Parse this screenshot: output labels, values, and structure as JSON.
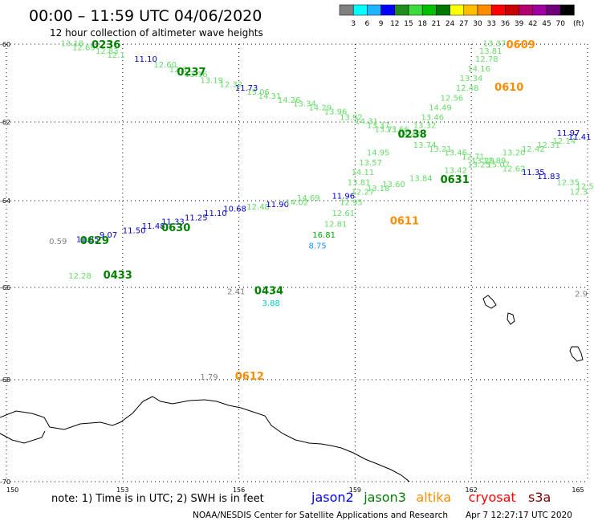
{
  "header": {
    "title": "00:00 – 11:59 UTC 04/06/2020",
    "subtitle": "12 hour collection of altimeter wave heights"
  },
  "colorbar": {
    "colors": [
      "#808080",
      "#00ffff",
      "#1eb4ff",
      "#0000ff",
      "#1e8c1e",
      "#3cdc3c",
      "#00c000",
      "#007800",
      "#ffff00",
      "#ffbe00",
      "#ff8c00",
      "#ff0000",
      "#c80000",
      "#b4006e",
      "#a000a0",
      "#6e0078",
      "#000000"
    ],
    "labels": [
      "3",
      "6",
      "9",
      "12",
      "15",
      "18",
      "21",
      "24",
      "27",
      "30",
      "33",
      "36",
      "39",
      "42",
      "45",
      "70"
    ],
    "unit": "(ft)"
  },
  "axes": {
    "lat_labels": [
      {
        "value": -60,
        "text": "-60"
      },
      {
        "value": -62,
        "text": "-62"
      },
      {
        "value": -64,
        "text": "-64"
      },
      {
        "value": -66,
        "text": "-66"
      },
      {
        "value": -68,
        "text": "-68"
      },
      {
        "value": -70,
        "text": "-70"
      }
    ],
    "lon_labels": [
      {
        "value": 150,
        "text": "150"
      },
      {
        "value": 153,
        "text": "153"
      },
      {
        "value": 156,
        "text": "156"
      },
      {
        "value": 159,
        "text": "159"
      },
      {
        "value": 162,
        "text": "162"
      },
      {
        "value": 165,
        "text": "165"
      }
    ]
  },
  "footer": {
    "note": "note: 1) Time is in UTC; 2) SWH is in feet",
    "legend": [
      {
        "name": "jason2",
        "color": "#0000ff"
      },
      {
        "name": "jason3",
        "color": "#008000"
      },
      {
        "name": "altika",
        "color": "#ff8c00"
      },
      {
        "name": "cryosat",
        "color": "#ff0000"
      },
      {
        "name": "s3a",
        "color": "#800000"
      }
    ],
    "credit": "NOAA/NESDIS Center for Satellite Applications and Research",
    "timestamp": "Apr  7 12:27:17 UTC 2020"
  },
  "chart_data": {
    "type": "scatter",
    "lon_range": [
      150,
      165
    ],
    "lat_range": [
      -70,
      -60
    ],
    "time_labels": [
      {
        "text": "0236",
        "lon": 152.2,
        "lat": -60.1,
        "color": "#008000"
      },
      {
        "text": "0237",
        "lon": 154.4,
        "lat": -60.8,
        "color": "#008000"
      },
      {
        "text": "0238",
        "lon": 160.1,
        "lat": -62.4,
        "color": "#008000"
      },
      {
        "text": "0609",
        "lon": 162.9,
        "lat": -60.1,
        "color": "#ff8c00"
      },
      {
        "text": "0610",
        "lon": 162.6,
        "lat": -61.2,
        "color": "#ff8c00"
      },
      {
        "text": "0611",
        "lon": 159.9,
        "lat": -64.55,
        "color": "#ff8c00"
      },
      {
        "text": "0612",
        "lon": 155.9,
        "lat": -68.0,
        "color": "#ff8c00"
      },
      {
        "text": "0629",
        "lon": 151.9,
        "lat": -65.0,
        "color": "#008000"
      },
      {
        "text": "0630",
        "lon": 154.0,
        "lat": -64.7,
        "color": "#008000"
      },
      {
        "text": "0631",
        "lon": 161.2,
        "lat": -63.55,
        "color": "#008000"
      },
      {
        "text": "0433",
        "lon": 152.5,
        "lat": -65.8,
        "color": "#008000"
      },
      {
        "text": "0434",
        "lon": 156.4,
        "lat": -66.15,
        "color": "#008000"
      }
    ],
    "points": [
      {
        "text": "13.18",
        "lon": 151.4,
        "lat": -60.05,
        "color": "#66dd66"
      },
      {
        "text": "12.69",
        "lon": 151.7,
        "lat": -60.15,
        "color": "#66dd66"
      },
      {
        "text": "12.83",
        "lon": 152.3,
        "lat": -60.25,
        "color": "#66dd66"
      },
      {
        "text": "12.1",
        "lon": 152.6,
        "lat": -60.35,
        "color": "#66dd66"
      },
      {
        "text": "11.10",
        "lon": 153.3,
        "lat": -60.45,
        "color": "#0000cc"
      },
      {
        "text": "12.60",
        "lon": 153.8,
        "lat": -60.6,
        "color": "#66dd66"
      },
      {
        "text": "12.61",
        "lon": 154.2,
        "lat": -60.72,
        "color": "#66dd66"
      },
      {
        "text": "13.16",
        "lon": 154.6,
        "lat": -60.85,
        "color": "#66dd66"
      },
      {
        "text": "13.19",
        "lon": 155.0,
        "lat": -61.0,
        "color": "#66dd66"
      },
      {
        "text": "12.32",
        "lon": 155.5,
        "lat": -61.1,
        "color": "#66dd66"
      },
      {
        "text": "11.73",
        "lon": 155.9,
        "lat": -61.2,
        "color": "#0000cc"
      },
      {
        "text": "15.06",
        "lon": 156.2,
        "lat": -61.3,
        "color": "#66dd66"
      },
      {
        "text": "14.31",
        "lon": 156.5,
        "lat": -61.4,
        "color": "#66dd66"
      },
      {
        "text": "14.26",
        "lon": 157.0,
        "lat": -61.5,
        "color": "#66dd66"
      },
      {
        "text": "13.34",
        "lon": 157.4,
        "lat": -61.6,
        "color": "#66dd66"
      },
      {
        "text": "14.29",
        "lon": 157.8,
        "lat": -61.7,
        "color": "#66dd66"
      },
      {
        "text": "13.96",
        "lon": 158.2,
        "lat": -61.8,
        "color": "#66dd66"
      },
      {
        "text": "13.92",
        "lon": 158.6,
        "lat": -61.95,
        "color": "#66dd66"
      },
      {
        "text": "14.31",
        "lon": 159.0,
        "lat": -62.05,
        "color": "#66dd66"
      },
      {
        "text": "13.37",
        "lon": 159.3,
        "lat": -62.15,
        "color": "#66dd66"
      },
      {
        "text": "13.66",
        "lon": 159.8,
        "lat": -62.25,
        "color": "#66dd66"
      },
      {
        "text": "13.71",
        "lon": 159.5,
        "lat": -62.25,
        "color": "#66dd66"
      },
      {
        "text": "13.47",
        "lon": 160.1,
        "lat": -62.4,
        "color": "#66dd66"
      },
      {
        "text": "13.74",
        "lon": 160.5,
        "lat": -62.65,
        "color": "#66dd66"
      },
      {
        "text": "13.21",
        "lon": 160.9,
        "lat": -62.75,
        "color": "#66dd66"
      },
      {
        "text": "13.46",
        "lon": 161.3,
        "lat": -62.85,
        "color": "#66dd66"
      },
      {
        "text": "12.71",
        "lon": 161.75,
        "lat": -62.95,
        "color": "#66dd66"
      },
      {
        "text": "13.29",
        "lon": 162.0,
        "lat": -63.05,
        "color": "#66dd66"
      },
      {
        "text": "15.07",
        "lon": 162.4,
        "lat": -63.15,
        "color": "#66dd66"
      },
      {
        "text": "12.62",
        "lon": 162.8,
        "lat": -63.25,
        "color": "#66dd66"
      },
      {
        "text": "11.35",
        "lon": 163.3,
        "lat": -63.35,
        "color": "#0000cc"
      },
      {
        "text": "11.83",
        "lon": 163.7,
        "lat": -63.45,
        "color": "#0000cc"
      },
      {
        "text": "12.35",
        "lon": 164.2,
        "lat": -63.6,
        "color": "#66dd66"
      },
      {
        "text": "12.56",
        "lon": 164.7,
        "lat": -63.7,
        "color": "#66dd66"
      },
      {
        "text": "12.3",
        "lon": 165.0,
        "lat": -63.85,
        "color": "#66dd66"
      },
      {
        "text": "13.37",
        "lon": 162.3,
        "lat": -60.05,
        "color": "#66dd66"
      },
      {
        "text": "13.81",
        "lon": 162.2,
        "lat": -60.25,
        "color": "#66dd66"
      },
      {
        "text": "12.78",
        "lon": 162.1,
        "lat": -60.45,
        "color": "#66dd66"
      },
      {
        "text": "14.16",
        "lon": 161.9,
        "lat": -60.7,
        "color": "#66dd66"
      },
      {
        "text": "13.34",
        "lon": 161.7,
        "lat": -60.95,
        "color": "#66dd66"
      },
      {
        "text": "12.48",
        "lon": 161.6,
        "lat": -61.2,
        "color": "#66dd66"
      },
      {
        "text": "12.56",
        "lon": 161.2,
        "lat": -61.45,
        "color": "#66dd66"
      },
      {
        "text": "14.49",
        "lon": 160.9,
        "lat": -61.7,
        "color": "#66dd66"
      },
      {
        "text": "13.46",
        "lon": 160.7,
        "lat": -61.95,
        "color": "#66dd66"
      },
      {
        "text": "13.32",
        "lon": 160.5,
        "lat": -62.15,
        "color": "#66dd66"
      },
      {
        "text": "14.95",
        "lon": 159.3,
        "lat": -62.85,
        "color": "#66dd66"
      },
      {
        "text": "13.57",
        "lon": 159.1,
        "lat": -63.1,
        "color": "#66dd66"
      },
      {
        "text": "14.11",
        "lon": 158.9,
        "lat": -63.35,
        "color": "#66dd66"
      },
      {
        "text": "13.81",
        "lon": 158.8,
        "lat": -63.6,
        "color": "#66dd66"
      },
      {
        "text": "12.95",
        "lon": 158.6,
        "lat": -64.1,
        "color": "#66dd66"
      },
      {
        "text": "12.61",
        "lon": 158.4,
        "lat": -64.35,
        "color": "#66dd66"
      },
      {
        "text": "12.81",
        "lon": 158.2,
        "lat": -64.6,
        "color": "#66dd66"
      },
      {
        "text": "16.81",
        "lon": 157.9,
        "lat": -64.85,
        "color": "#00aa00"
      },
      {
        "text": "8.75",
        "lon": 157.8,
        "lat": -65.1,
        "color": "#1e90ff"
      },
      {
        "text": "11.85",
        "lon": 151.8,
        "lat": -64.95,
        "color": "#0000cc"
      },
      {
        "text": "9.07",
        "lon": 152.4,
        "lat": -64.85,
        "color": "#0000cc"
      },
      {
        "text": "11.50",
        "lon": 153.0,
        "lat": -64.75,
        "color": "#0000cc"
      },
      {
        "text": "11.48",
        "lon": 153.5,
        "lat": -64.65,
        "color": "#0000cc"
      },
      {
        "text": "11.33",
        "lon": 154.0,
        "lat": -64.55,
        "color": "#0000cc"
      },
      {
        "text": "11.25",
        "lon": 154.6,
        "lat": -64.45,
        "color": "#0000cc"
      },
      {
        "text": "11.10",
        "lon": 155.1,
        "lat": -64.35,
        "color": "#0000cc"
      },
      {
        "text": "10.68",
        "lon": 155.6,
        "lat": -64.25,
        "color": "#0000cc"
      },
      {
        "text": "12.48",
        "lon": 156.2,
        "lat": -64.2,
        "color": "#66dd66"
      },
      {
        "text": "11.90",
        "lon": 156.7,
        "lat": -64.15,
        "color": "#0000cc"
      },
      {
        "text": "14.02",
        "lon": 157.2,
        "lat": -64.1,
        "color": "#66dd66"
      },
      {
        "text": "14.69",
        "lon": 157.5,
        "lat": -64.0,
        "color": "#66dd66"
      },
      {
        "text": "11.96",
        "lon": 158.4,
        "lat": -63.95,
        "color": "#0000cc"
      },
      {
        "text": "12.27",
        "lon": 158.9,
        "lat": -63.85,
        "color": "#66dd66"
      },
      {
        "text": "13.18",
        "lon": 159.3,
        "lat": -63.75,
        "color": "#66dd66"
      },
      {
        "text": "13.60",
        "lon": 159.7,
        "lat": -63.65,
        "color": "#66dd66"
      },
      {
        "text": "13.84",
        "lon": 160.4,
        "lat": -63.5,
        "color": "#66dd66"
      },
      {
        "text": "13.42",
        "lon": 161.3,
        "lat": -63.3,
        "color": "#66dd66"
      },
      {
        "text": "13.25",
        "lon": 161.9,
        "lat": -63.15,
        "color": "#66dd66"
      },
      {
        "text": "12.89",
        "lon": 162.3,
        "lat": -63.05,
        "color": "#66dd66"
      },
      {
        "text": "13.20",
        "lon": 162.8,
        "lat": -62.85,
        "color": "#66dd66"
      },
      {
        "text": "12.42",
        "lon": 163.3,
        "lat": -62.75,
        "color": "#66dd66"
      },
      {
        "text": "12.31",
        "lon": 163.7,
        "lat": -62.65,
        "color": "#66dd66"
      },
      {
        "text": "12.14",
        "lon": 164.1,
        "lat": -62.55,
        "color": "#66dd66"
      },
      {
        "text": "11.41",
        "lon": 164.5,
        "lat": -62.45,
        "color": "#0000cc"
      },
      {
        "text": "11.97",
        "lon": 164.8,
        "lat": -62.35,
        "color": "#0000cc"
      },
      {
        "text": "0.59",
        "lon": 151.1,
        "lat": -65.0,
        "color": "#808080"
      },
      {
        "text": "12.28",
        "lon": 151.6,
        "lat": -65.8,
        "color": "#66dd66"
      },
      {
        "text": "2.41",
        "lon": 155.7,
        "lat": -66.15,
        "color": "#808080"
      },
      {
        "text": "3.88",
        "lon": 156.6,
        "lat": -66.4,
        "color": "#00cccc"
      },
      {
        "text": "1.79",
        "lon": 155.0,
        "lat": -68.0,
        "color": "#808080"
      },
      {
        "text": "2.9",
        "lon": 165.0,
        "lat": -66.2,
        "color": "#808080"
      }
    ]
  }
}
